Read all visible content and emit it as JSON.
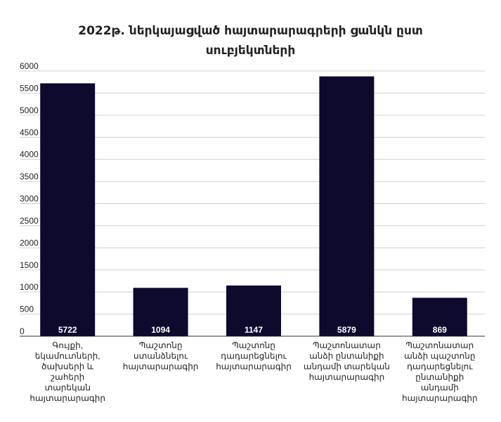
{
  "chart_data": {
    "type": "bar",
    "title_lines": [
      "2022թ. ներկայացված հայտարարագրերի ցանկն ըստ",
      "սուբյեկտների"
    ],
    "categories": [
      [
        "Գույքի,",
        "եկամուտների,",
        "ծախսերի և շահերի",
        "տարեկան",
        "հայտարարագիր"
      ],
      [
        "Պաշտոնը",
        "ստանձնելու",
        "հայտարարագիր"
      ],
      [
        "Պաշտոնը",
        "դադարեցնելու",
        "հայտարարագիր"
      ],
      [
        "Պաշտոնատար",
        "անձի ընտանիքի",
        "անդամի տարեկան",
        "հայտարարագիր"
      ],
      [
        "Պաշտոնատար",
        "անձի պաշտոնը",
        "դադարեցնելու",
        "ընտանիքի",
        "անդամի",
        "հայտարարագիր"
      ]
    ],
    "values": [
      5722,
      1094,
      1147,
      5879,
      869
    ],
    "ylim": [
      0,
      6000
    ],
    "yticks": [
      0,
      500,
      1000,
      1500,
      2000,
      2500,
      3000,
      3500,
      4000,
      4500,
      5000,
      5500,
      6000
    ],
    "grid": true,
    "legend": "none",
    "bar_color": "#0d0a2e",
    "label_color": "#ffffff"
  }
}
